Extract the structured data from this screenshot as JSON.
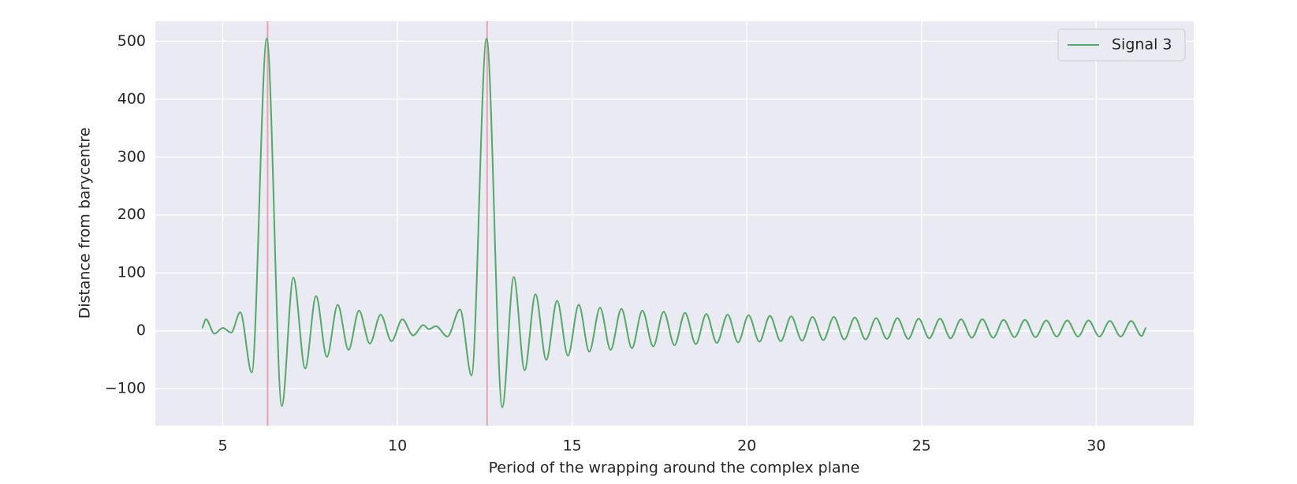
{
  "chart_data": {
    "type": "line",
    "xlabel": "Period of the wrapping around the complex plane",
    "ylabel": "Distance from barycentre",
    "xlim": [
      3.07,
      32.79
    ],
    "ylim": [
      -163.8,
      534.5
    ],
    "xticks": [
      5,
      10,
      15,
      20,
      25,
      30
    ],
    "yticks": [
      {
        "value": -100,
        "label": "−100"
      },
      0,
      100,
      200,
      300,
      400,
      500
    ],
    "grid": true,
    "legend": "upper right",
    "vlines": [
      6.283,
      12.566
    ],
    "vline_color": "#e8a2b4",
    "x": [
      4.4,
      4.52,
      4.76,
      5.0,
      5.24,
      5.5,
      5.83,
      6.26,
      6.69,
      7.02,
      7.36,
      7.67,
      7.98,
      8.29,
      8.6,
      8.9,
      9.21,
      9.52,
      9.83,
      10.14,
      10.45,
      10.74,
      10.9,
      11.1,
      11.43,
      11.79,
      12.12,
      12.55,
      13.0,
      13.33,
      13.64,
      13.95,
      14.26,
      14.57,
      14.88,
      15.19,
      15.49,
      15.8,
      16.1,
      16.41,
      16.71,
      17.01,
      17.32,
      17.62,
      17.93,
      18.23,
      18.54,
      18.84,
      19.14,
      19.45,
      19.75,
      20.05,
      20.36,
      20.66,
      20.97,
      21.27,
      21.58,
      21.88,
      22.19,
      22.49,
      22.79,
      23.09,
      23.4,
      23.7,
      24.01,
      24.31,
      24.62,
      24.92,
      25.22,
      25.53,
      25.83,
      26.13,
      26.44,
      26.74,
      27.05,
      27.35,
      27.66,
      27.96,
      28.26,
      28.57,
      28.87,
      29.17,
      29.48,
      29.78,
      30.09,
      30.39,
      30.7,
      31.0,
      31.3,
      31.43
    ],
    "series": [
      {
        "name": "Signal 3",
        "color": "#55a868",
        "values": [
          5,
          20,
          -5,
          5,
          -3,
          32,
          -72,
          505,
          -130,
          92,
          -65,
          60,
          -45,
          45,
          -33,
          35,
          -22,
          28,
          -18,
          20,
          -8,
          10,
          3,
          8,
          -10,
          37,
          -77,
          505,
          -132,
          93,
          -68,
          63,
          -50,
          52,
          -43,
          45,
          -36,
          40,
          -33,
          38,
          -30,
          35,
          -27,
          33,
          -25,
          31,
          -23,
          29,
          -21,
          28,
          -20,
          27,
          -19,
          26,
          -18,
          25,
          -17,
          24,
          -16,
          24,
          -15,
          23,
          -15,
          22,
          -14,
          22,
          -14,
          21,
          -13,
          21,
          -13,
          20,
          -12,
          20,
          -12,
          19,
          -11,
          19,
          -11,
          18,
          -10,
          18,
          -10,
          18,
          -10,
          17,
          -10,
          17,
          -9,
          5
        ]
      }
    ]
  }
}
